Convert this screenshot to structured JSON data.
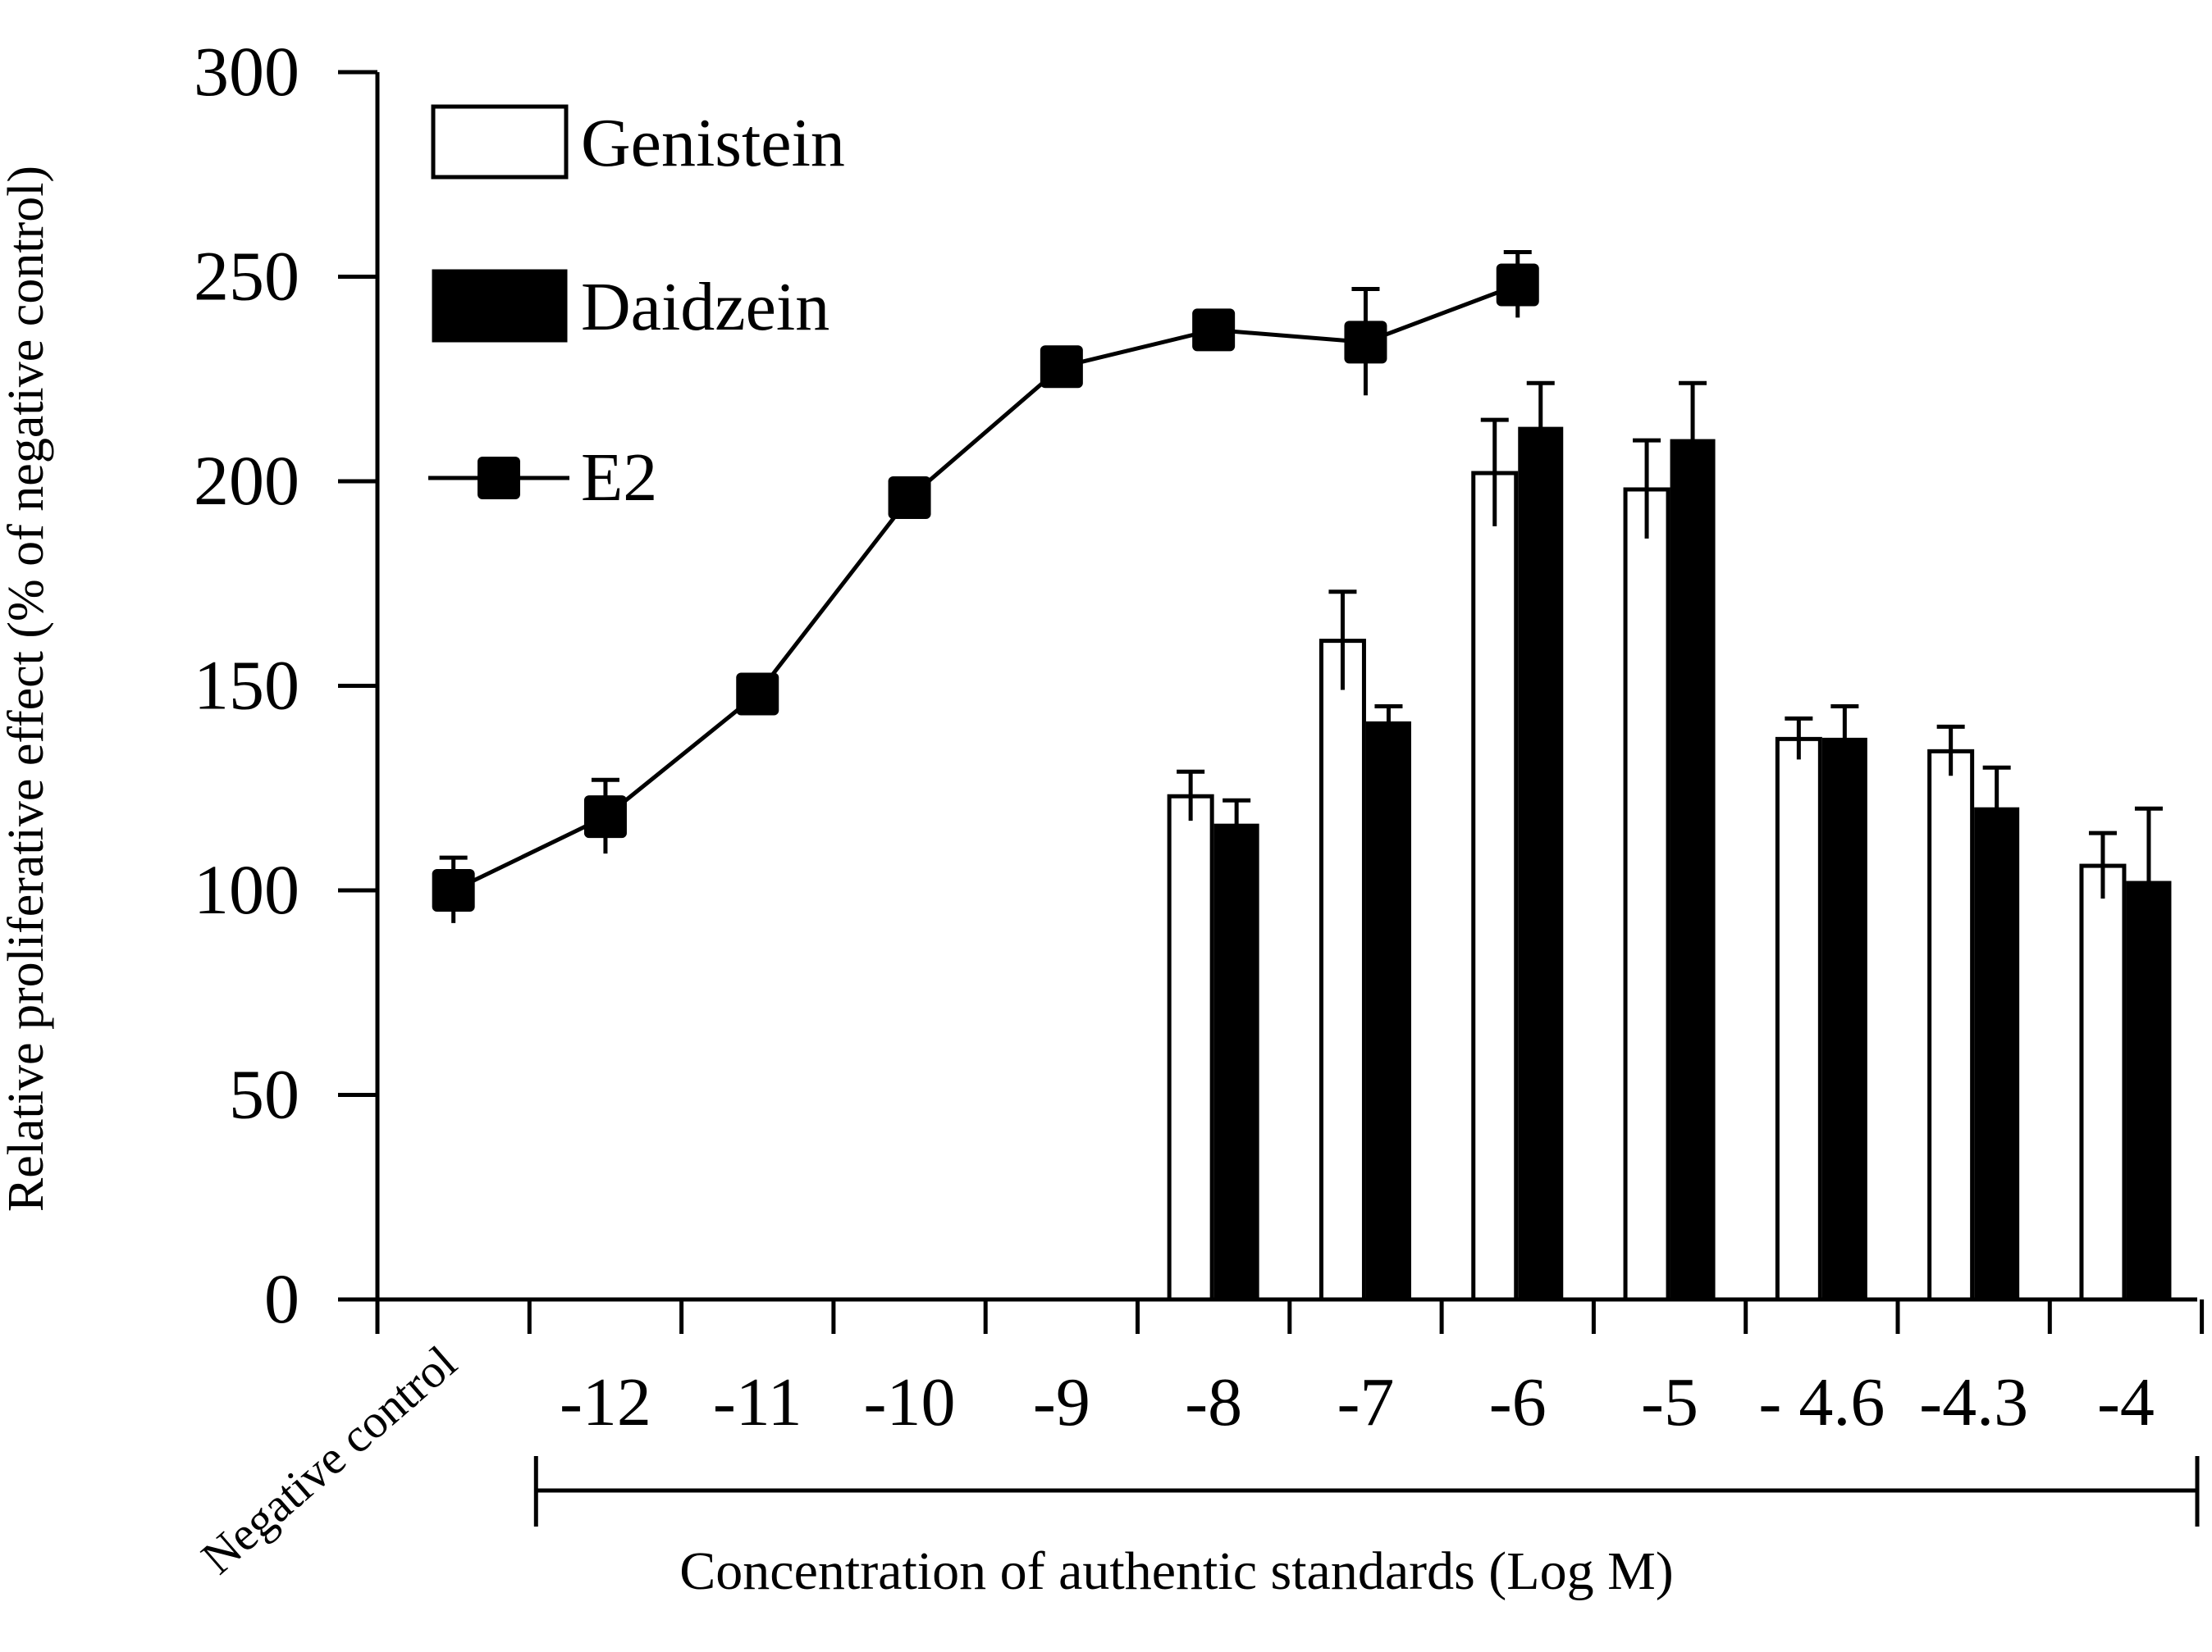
{
  "chart_data": {
    "type": "bar",
    "title": "",
    "ylabel": "Relative proliferative effect (% of negative control)",
    "xlabel": "Concentration of authentic standards (Log M)",
    "ylim": [
      0,
      300
    ],
    "yticks": [
      "0",
      "50",
      "100",
      "150",
      "200",
      "250",
      "300"
    ],
    "categories": [
      "Negative control",
      "-12",
      "-11",
      "-10",
      "-9",
      "-8",
      "-7",
      "-6",
      "-5",
      "- 4.6",
      "-4.3",
      "-4"
    ],
    "legend_position": "top-left",
    "series": [
      {
        "name": "Genistein",
        "kind": "bar",
        "color": "#ffffff",
        "values": [
          null,
          null,
          null,
          null,
          null,
          123,
          161,
          202,
          198,
          137,
          134,
          106
        ],
        "errors": [
          null,
          null,
          null,
          null,
          null,
          6,
          12,
          13,
          12,
          5,
          6,
          8
        ]
      },
      {
        "name": "Daidzein",
        "kind": "bar",
        "color": "#000000",
        "values": [
          null,
          null,
          null,
          null,
          null,
          116,
          141,
          213,
          210,
          137,
          120,
          102
        ],
        "errors": [
          null,
          null,
          null,
          null,
          null,
          6,
          4,
          11,
          14,
          8,
          10,
          18
        ]
      },
      {
        "name": "E2",
        "kind": "line",
        "color": "#000000",
        "values": [
          100,
          118,
          148,
          196,
          228,
          237,
          234,
          248,
          null,
          null,
          null,
          null
        ],
        "errors": [
          8,
          9,
          null,
          null,
          null,
          null,
          13,
          8,
          null,
          null,
          null,
          null
        ]
      }
    ]
  }
}
